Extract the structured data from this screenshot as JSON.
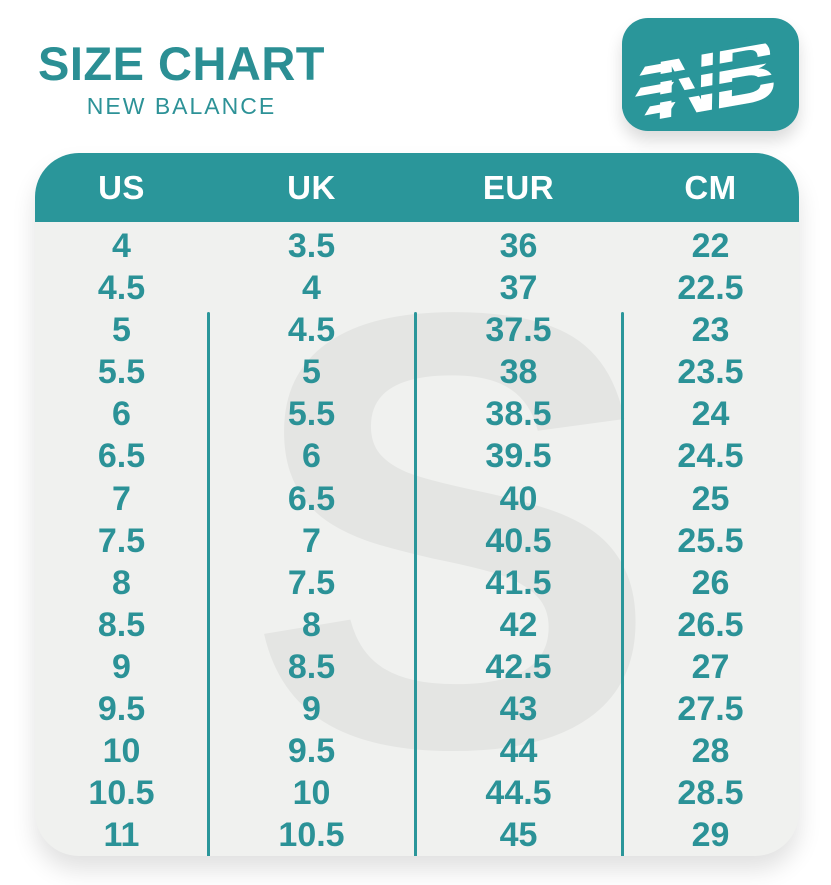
{
  "header": {
    "title": "SIZE CHART",
    "subtitle": "NEW BALANCE"
  },
  "logo": {
    "label": "new-balance-logo",
    "monogram": "NB"
  },
  "table": {
    "columns": [
      "US",
      "UK",
      "EUR",
      "CM"
    ],
    "rows": [
      [
        "4",
        "3.5",
        "36",
        "22"
      ],
      [
        "4.5",
        "4",
        "37",
        "22.5"
      ],
      [
        "5",
        "4.5",
        "37.5",
        "23"
      ],
      [
        "5.5",
        "5",
        "38",
        "23.5"
      ],
      [
        "6",
        "5.5",
        "38.5",
        "24"
      ],
      [
        "6.5",
        "6",
        "39.5",
        "24.5"
      ],
      [
        "7",
        "6.5",
        "40",
        "25"
      ],
      [
        "7.5",
        "7",
        "40.5",
        "25.5"
      ],
      [
        "8",
        "7.5",
        "41.5",
        "26"
      ],
      [
        "8.5",
        "8",
        "42",
        "26.5"
      ],
      [
        "9",
        "8.5",
        "42.5",
        "27"
      ],
      [
        "9.5",
        "9",
        "43",
        "27.5"
      ],
      [
        "10",
        "9.5",
        "44",
        "28"
      ],
      [
        "10.5",
        "10",
        "44.5",
        "28.5"
      ],
      [
        "11",
        "10.5",
        "45",
        "29"
      ]
    ]
  },
  "watermark": {
    "glyph": "S"
  },
  "colors": {
    "teal": "#2a969a",
    "text_teal": "#2b9297",
    "title_teal": "#2b8f94",
    "table_bg": "#f0f1ef",
    "watermark_gray": "#e4e5e3"
  }
}
